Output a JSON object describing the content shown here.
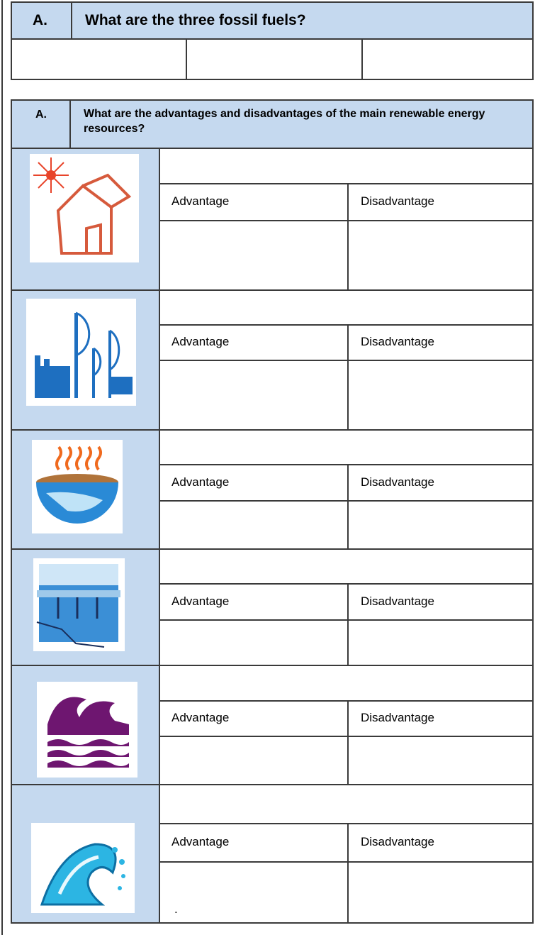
{
  "worksheet": {
    "fossil_fuels": {
      "label": "A.",
      "question": "What are the three fossil fuels?"
    },
    "renewables": {
      "label": "A.",
      "question": "What are the advantages and disadvantages of the main renewable energy resources?",
      "sections": [
        {
          "advantage": "Advantage",
          "disadvantage": "Disadvantage"
        },
        {
          "advantage": "Advantage",
          "disadvantage": "Disadvantage"
        },
        {
          "advantage": "Advantage",
          "disadvantage": "Disadvantage"
        },
        {
          "advantage": "Advantage",
          "disadvantage": "Disadvantage"
        },
        {
          "advantage": "Advantage",
          "disadvantage": "Disadvantage"
        },
        {
          "advantage": "Advantage",
          "disadvantage": "Disadvantage",
          "note": "."
        }
      ]
    }
  }
}
